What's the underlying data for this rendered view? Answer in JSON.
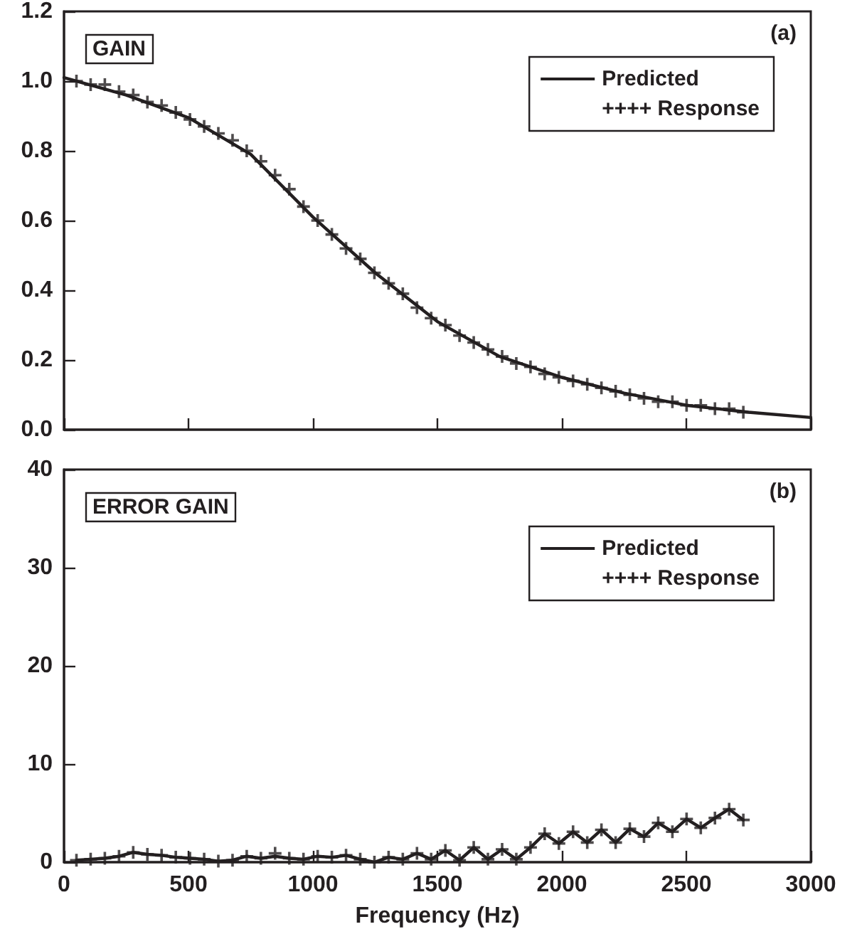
{
  "chart_data": [
    {
      "type": "line",
      "annotations": [
        "GAIN",
        "(a)"
      ],
      "xlim": [
        0,
        3000
      ],
      "xticks": [
        0,
        500,
        1000,
        1500,
        2000,
        2500,
        3000
      ],
      "ylim": [
        0,
        1.2
      ],
      "yticks": [
        {
          "value": 0,
          "label": "0.0"
        },
        0.2,
        0.4,
        0.6,
        0.8,
        {
          "value": 1,
          "label": "1.0"
        },
        1.2
      ],
      "tick_labels": "y",
      "legend": "top right",
      "grid": false,
      "series": [
        {
          "name": "Predicted",
          "color": "#231f20",
          "line_style": "solid",
          "marker": "none",
          "x": [
            0,
            250,
            500,
            750,
            1000,
            1250,
            1500,
            1750,
            2000,
            2250,
            2500,
            2750,
            3000
          ],
          "values": [
            1.01,
            0.96,
            0.895,
            0.79,
            0.61,
            0.45,
            0.31,
            0.21,
            0.15,
            0.105,
            0.07,
            0.05,
            0.035
          ]
        },
        {
          "name": "++++ Response",
          "type": "scatter",
          "color": "#231f20",
          "marker": "cross",
          "x": [
            50,
            107,
            164,
            221,
            278,
            335,
            392,
            449,
            506,
            563,
            620,
            677,
            734,
            791,
            848,
            905,
            962,
            1019,
            1076,
            1133,
            1190,
            1247,
            1304,
            1361,
            1418,
            1475,
            1532,
            1589,
            1646,
            1703,
            1760,
            1817,
            1874,
            1931,
            1988,
            2045,
            2102,
            2159,
            2216,
            2273,
            2330,
            2387,
            2444,
            2501,
            2558,
            2615,
            2672,
            2729
          ],
          "values": [
            1.0,
            0.99,
            0.99,
            0.97,
            0.96,
            0.94,
            0.93,
            0.91,
            0.89,
            0.87,
            0.85,
            0.83,
            0.8,
            0.77,
            0.73,
            0.69,
            0.64,
            0.6,
            0.56,
            0.52,
            0.49,
            0.45,
            0.42,
            0.39,
            0.35,
            0.32,
            0.3,
            0.27,
            0.25,
            0.23,
            0.21,
            0.19,
            0.18,
            0.16,
            0.15,
            0.14,
            0.13,
            0.12,
            0.11,
            0.1,
            0.09,
            0.08,
            0.08,
            0.07,
            0.07,
            0.06,
            0.06,
            0.05
          ]
        }
      ]
    },
    {
      "type": "line",
      "annotations": [
        "ERROR GAIN",
        "(b)"
      ],
      "xlabel": "Frequency (Hz)",
      "xlim": [
        0,
        3000
      ],
      "xticks": [
        0,
        500,
        1000,
        1500,
        2000,
        2500,
        3000
      ],
      "ylim": [
        0,
        40
      ],
      "yticks": [
        0,
        10,
        20,
        30,
        40
      ],
      "legend": "right",
      "grid": false,
      "series": [
        {
          "name": "Predicted",
          "color": "#231f20",
          "line_style": "solid",
          "marker": "none",
          "x": [
            50,
            107,
            164,
            221,
            278,
            335,
            392,
            449,
            506,
            563,
            620,
            677,
            734,
            791,
            848,
            905,
            962,
            1019,
            1076,
            1133,
            1190,
            1247,
            1304,
            1361,
            1418,
            1475,
            1532,
            1589,
            1646,
            1703,
            1760,
            1817,
            1874,
            1931,
            1988,
            2045,
            2102,
            2159,
            2216,
            2273,
            2330,
            2387,
            2444,
            2501,
            2558,
            2615,
            2672,
            2729
          ],
          "values": [
            0.2,
            0.3,
            0.4,
            0.6,
            1.0,
            0.8,
            0.7,
            0.5,
            0.4,
            0.3,
            0.1,
            0.2,
            0.6,
            0.4,
            0.6,
            0.4,
            0.3,
            0.6,
            0.5,
            0.7,
            0.3,
            0.0,
            0.5,
            0.3,
            0.9,
            0.3,
            1.2,
            0.2,
            1.5,
            0.3,
            1.3,
            0.3,
            1.5,
            2.9,
            1.9,
            3.1,
            2.0,
            3.3,
            2.0,
            3.4,
            2.6,
            4.0,
            3.1,
            4.4,
            3.5,
            4.5,
            5.4,
            4.3
          ]
        },
        {
          "name": "++++ Response",
          "type": "scatter",
          "color": "#231f20",
          "marker": "cross",
          "x": [
            50,
            107,
            164,
            221,
            278,
            335,
            392,
            449,
            506,
            563,
            620,
            677,
            734,
            791,
            848,
            905,
            962,
            1019,
            1076,
            1133,
            1190,
            1247,
            1304,
            1361,
            1418,
            1475,
            1532,
            1589,
            1646,
            1703,
            1760,
            1817,
            1874,
            1931,
            1988,
            2045,
            2102,
            2159,
            2216,
            2273,
            2330,
            2387,
            2444,
            2501,
            2558,
            2615,
            2672,
            2729
          ],
          "values": [
            0.2,
            0.3,
            0.4,
            0.6,
            1.0,
            0.8,
            0.7,
            0.5,
            0.4,
            0.3,
            0.1,
            0.2,
            0.6,
            0.4,
            0.9,
            0.4,
            0.3,
            0.6,
            0.5,
            0.7,
            0.3,
            0.0,
            0.5,
            0.3,
            0.9,
            0.3,
            1.2,
            0.2,
            1.5,
            0.3,
            1.3,
            0.3,
            1.5,
            2.9,
            1.9,
            3.1,
            2.0,
            3.3,
            2.0,
            3.4,
            2.6,
            4.0,
            3.1,
            4.4,
            3.5,
            4.5,
            5.4,
            4.3
          ]
        }
      ]
    }
  ]
}
